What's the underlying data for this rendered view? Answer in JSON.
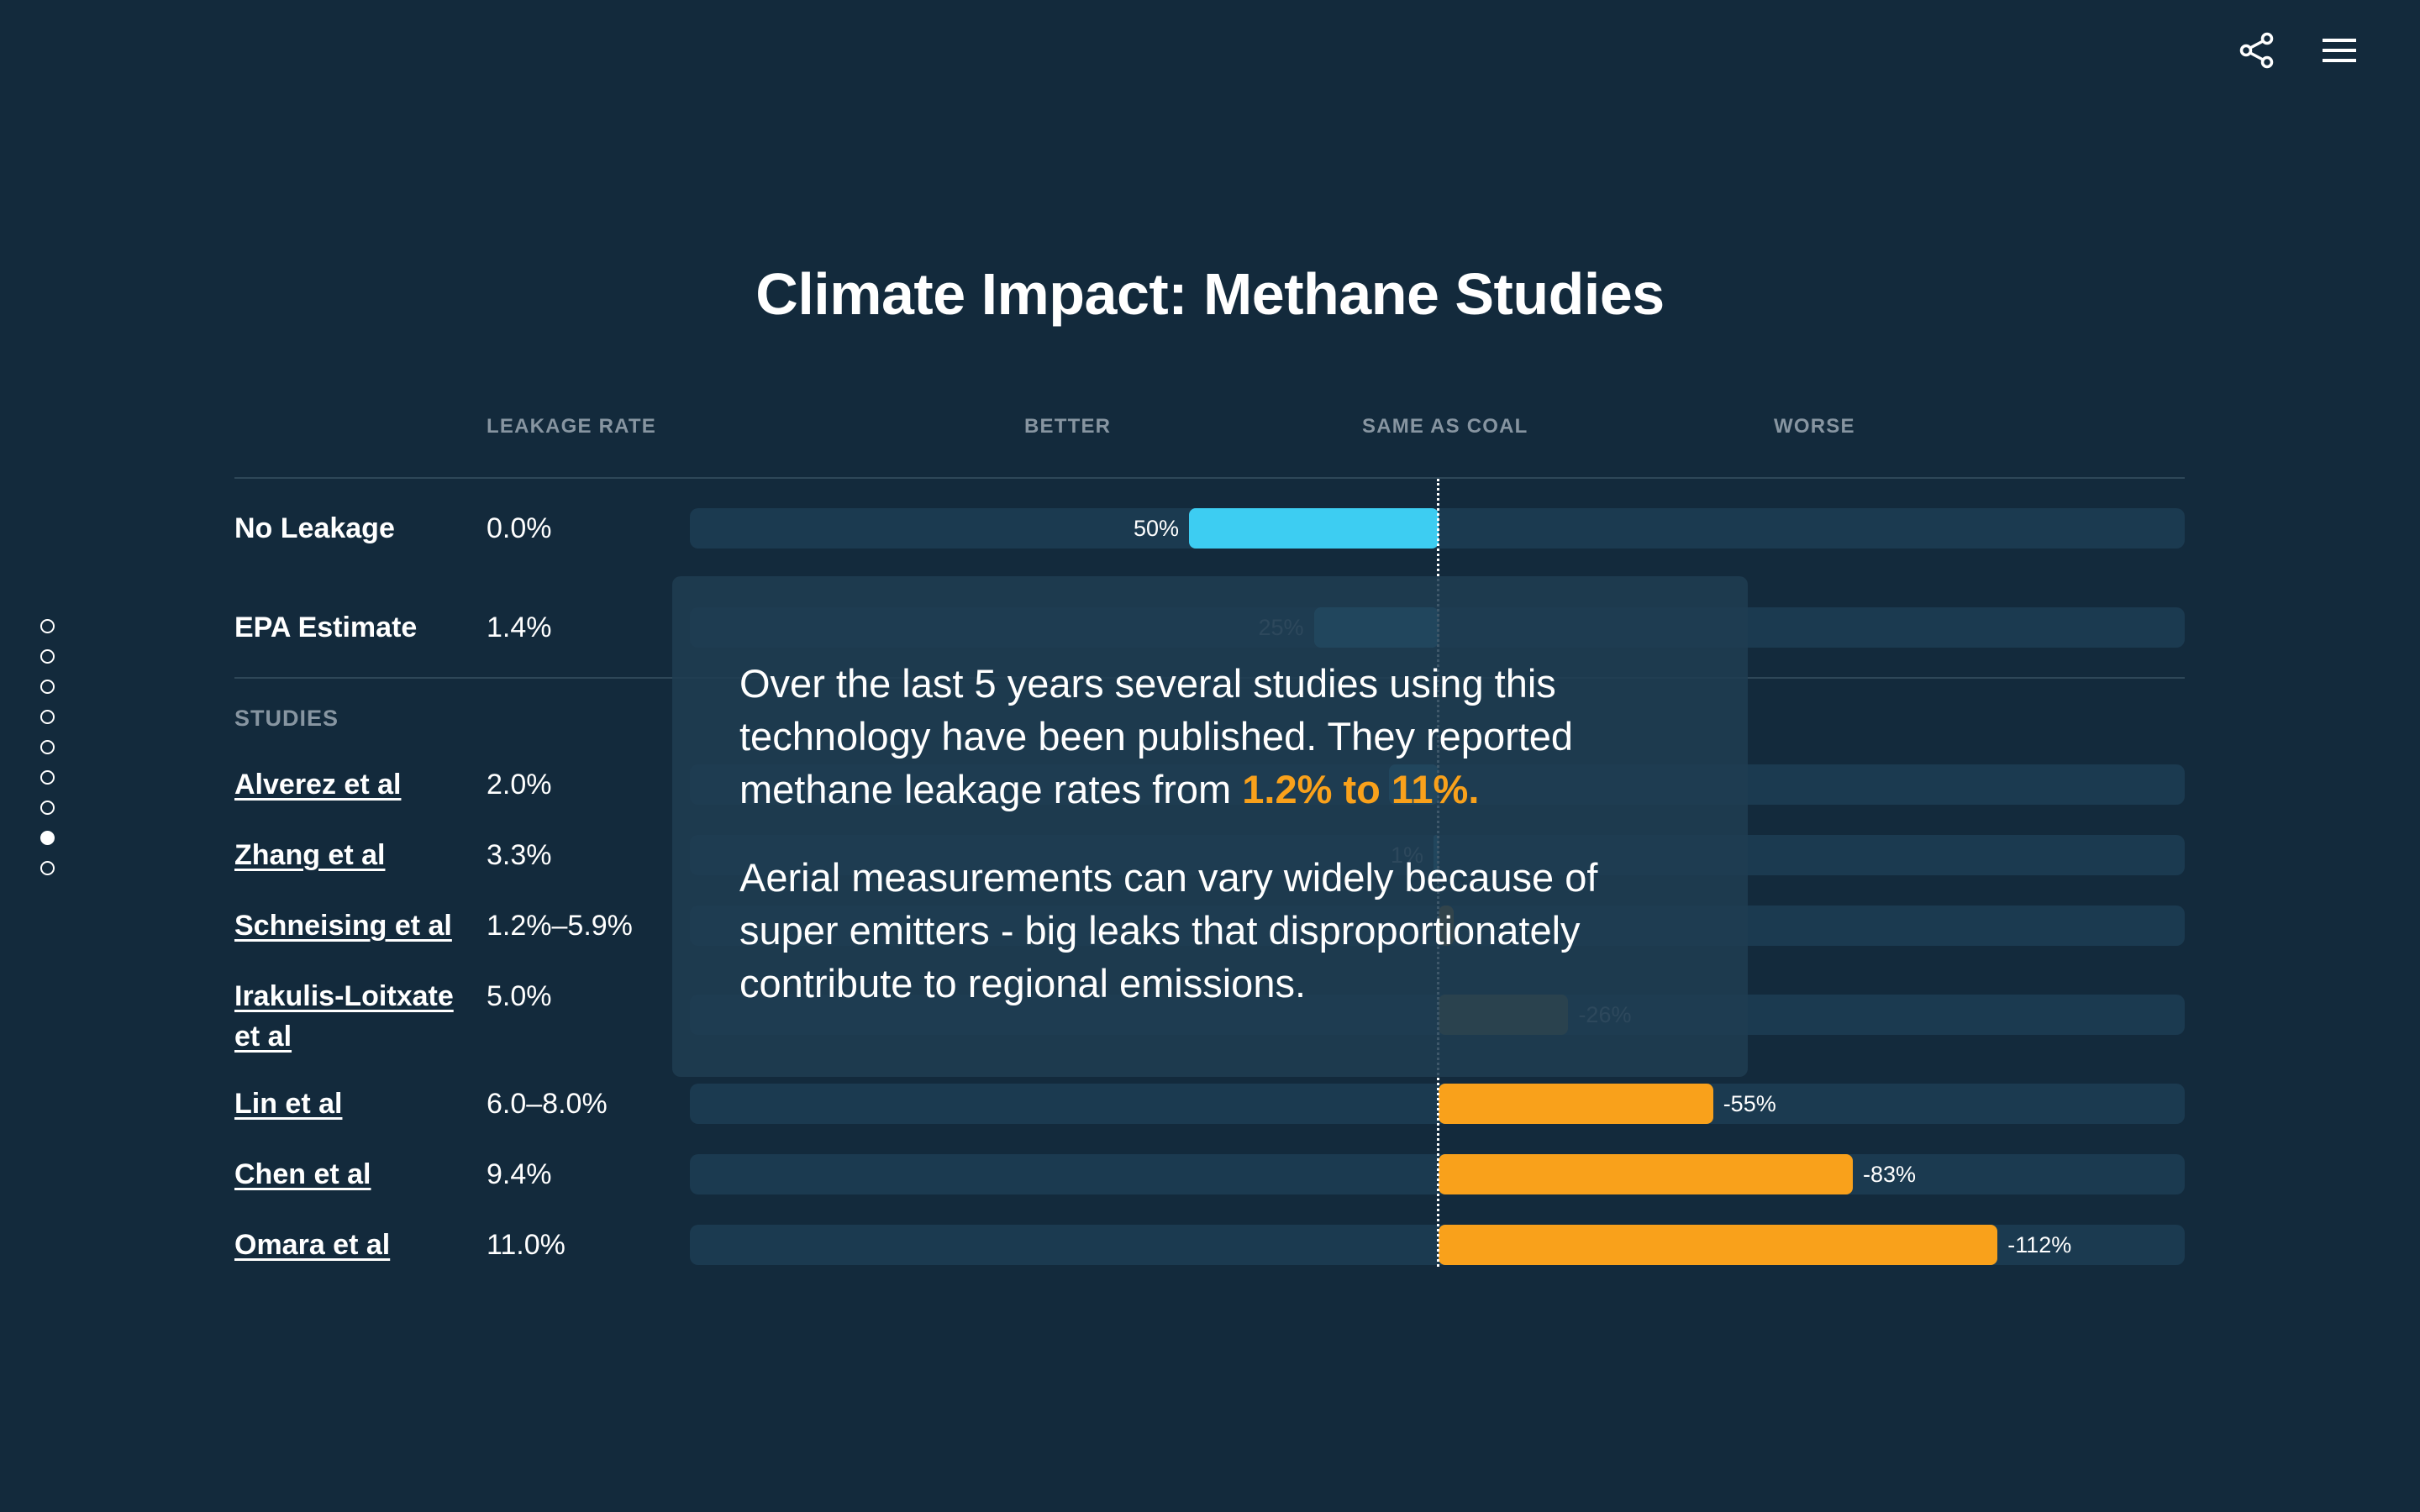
{
  "topbar": {
    "share_icon": "share-icon",
    "menu_icon": "hamburger-menu-icon"
  },
  "pagination": {
    "count": 9,
    "active_index": 7
  },
  "chart_data": {
    "type": "bar",
    "title": "Climate Impact: Methane Studies",
    "columns": {
      "leakage_rate": "LEAKAGE RATE",
      "better": "BETTER",
      "same": "SAME AS COAL",
      "worse": "WORSE"
    },
    "baseline_rows": [
      {
        "name": "No Leakage",
        "rate": "0.0%",
        "value": 50,
        "label": "50%",
        "color": "#3dcdf2",
        "dimmed": false
      },
      {
        "name": "EPA Estimate",
        "rate": "1.4%",
        "value": 25,
        "label": "25%",
        "color": "#2c7fa6",
        "dimmed": true
      }
    ],
    "studies_label": "STUDIES",
    "studies": [
      {
        "name": "Alverez et al",
        "rate": "2.0%",
        "value": 10,
        "label": "",
        "color": "#2c7fa6",
        "dimmed": true
      },
      {
        "name": "Zhang et al",
        "rate": "3.3%",
        "value": 1,
        "label": "1%",
        "color": "#2c7fa6",
        "dimmed": true
      },
      {
        "name": "Schneising et al",
        "rate": "1.2%–5.9%",
        "value": -3,
        "label": "",
        "color": "#a07423",
        "dimmed": true
      },
      {
        "name": "Irakulis-Loitxate et al",
        "rate": "5.0%",
        "value": -26,
        "label": "-26%",
        "color": "#6e6438",
        "dimmed": true
      },
      {
        "name": "Lin et al",
        "rate": "6.0–8.0%",
        "value": -55,
        "label": "-55%",
        "color": "#f9a11b",
        "dimmed": false
      },
      {
        "name": "Chen et al",
        "rate": "9.4%",
        "value": -83,
        "label": "-83%",
        "color": "#f9a11b",
        "dimmed": false
      },
      {
        "name": "Omara et al",
        "rate": "11.0%",
        "value": -112,
        "label": "-112%",
        "color": "#f9a11b",
        "dimmed": false
      }
    ],
    "xlim": [
      150,
      -150
    ]
  },
  "callout": {
    "p1_text": "Over the last 5 years several studies using this technology have been published. They reported methane leakage rates from ",
    "p1_highlight": "1.2% to 11%.",
    "p2_text": "Aerial measurements can vary widely because of super emitters - big leaks that disproportionately contribute to regional emissions."
  }
}
